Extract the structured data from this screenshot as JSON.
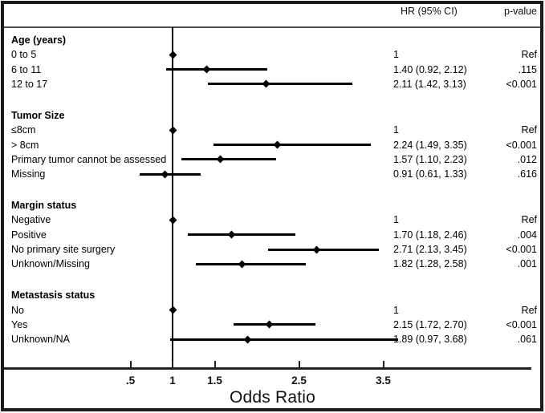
{
  "header": {
    "hr_label": "HR (95% CI)",
    "p_label": "p-value"
  },
  "colors": {
    "border": "#1b1b1b",
    "line": "#000000",
    "separator": "#4e4e4e"
  },
  "chart_data": {
    "type": "forest",
    "xlabel": "Odds Ratio",
    "ref_line": 1,
    "xlim": [
      0.3,
      4.3
    ],
    "xticks": [
      {
        "value": 0.5,
        "label": ".5"
      },
      {
        "value": 1,
        "label": "1"
      },
      {
        "value": 1.5,
        "label": "1.5"
      },
      {
        "value": 2.5,
        "label": "2.5"
      },
      {
        "value": 3.5,
        "label": "3.5"
      }
    ],
    "groups": [
      {
        "label": "Age (years)",
        "rows": [
          {
            "label": "0 to 5",
            "est": 1,
            "lo": null,
            "hi": null,
            "hr_text": "1",
            "p_text": "Ref"
          },
          {
            "label": "6 to 11",
            "est": 1.4,
            "lo": 0.92,
            "hi": 2.12,
            "hr_text": "1.40 (0.92, 2.12)",
            "p_text": ".115"
          },
          {
            "label": "12 to 17",
            "est": 2.11,
            "lo": 1.42,
            "hi": 3.13,
            "hr_text": "2.11 (1.42, 3.13)",
            "p_text": "<0.001"
          }
        ]
      },
      {
        "label": "Tumor Size",
        "rows": [
          {
            "label": "≤8cm",
            "est": 1,
            "lo": null,
            "hi": null,
            "hr_text": "1",
            "p_text": "Ref"
          },
          {
            "label": "> 8cm",
            "est": 2.24,
            "lo": 1.49,
            "hi": 3.35,
            "hr_text": "2.24 (1.49, 3.35)",
            "p_text": "<0.001"
          },
          {
            "label": "Primary tumor cannot be assessed",
            "est": 1.57,
            "lo": 1.1,
            "hi": 2.23,
            "hr_text": "1.57 (1.10, 2.23)",
            "p_text": ".012"
          },
          {
            "label": "Missing",
            "est": 0.91,
            "lo": 0.61,
            "hi": 1.33,
            "hr_text": "0.91 (0.61, 1.33)",
            "p_text": ".616"
          }
        ]
      },
      {
        "label": "Margin status",
        "rows": [
          {
            "label": "Negative",
            "est": 1,
            "lo": null,
            "hi": null,
            "hr_text": "1",
            "p_text": "Ref"
          },
          {
            "label": "Positive",
            "est": 1.7,
            "lo": 1.18,
            "hi": 2.46,
            "hr_text": "1.70 (1.18, 2.46)",
            "p_text": ".004"
          },
          {
            "label": "No primary site surgery",
            "est": 2.71,
            "lo": 2.13,
            "hi": 3.45,
            "hr_text": "2.71 (2.13, 3.45)",
            "p_text": "<0.001"
          },
          {
            "label": "Unknown/Missing",
            "est": 1.82,
            "lo": 1.28,
            "hi": 2.58,
            "hr_text": "1.82 (1.28, 2.58)",
            "p_text": ".001"
          }
        ]
      },
      {
        "label": "Metastasis status",
        "rows": [
          {
            "label": "No",
            "est": 1,
            "lo": null,
            "hi": null,
            "hr_text": "1",
            "p_text": "Ref"
          },
          {
            "label": "Yes",
            "est": 2.15,
            "lo": 1.72,
            "hi": 2.7,
            "hr_text": "2.15 (1.72, 2.70)",
            "p_text": "<0.001"
          },
          {
            "label": "Unknown/NA",
            "est": 1.89,
            "lo": 0.97,
            "hi": 3.68,
            "hr_text": "1.89 (0.97, 3.68)",
            "p_text": ".061"
          }
        ]
      }
    ]
  }
}
